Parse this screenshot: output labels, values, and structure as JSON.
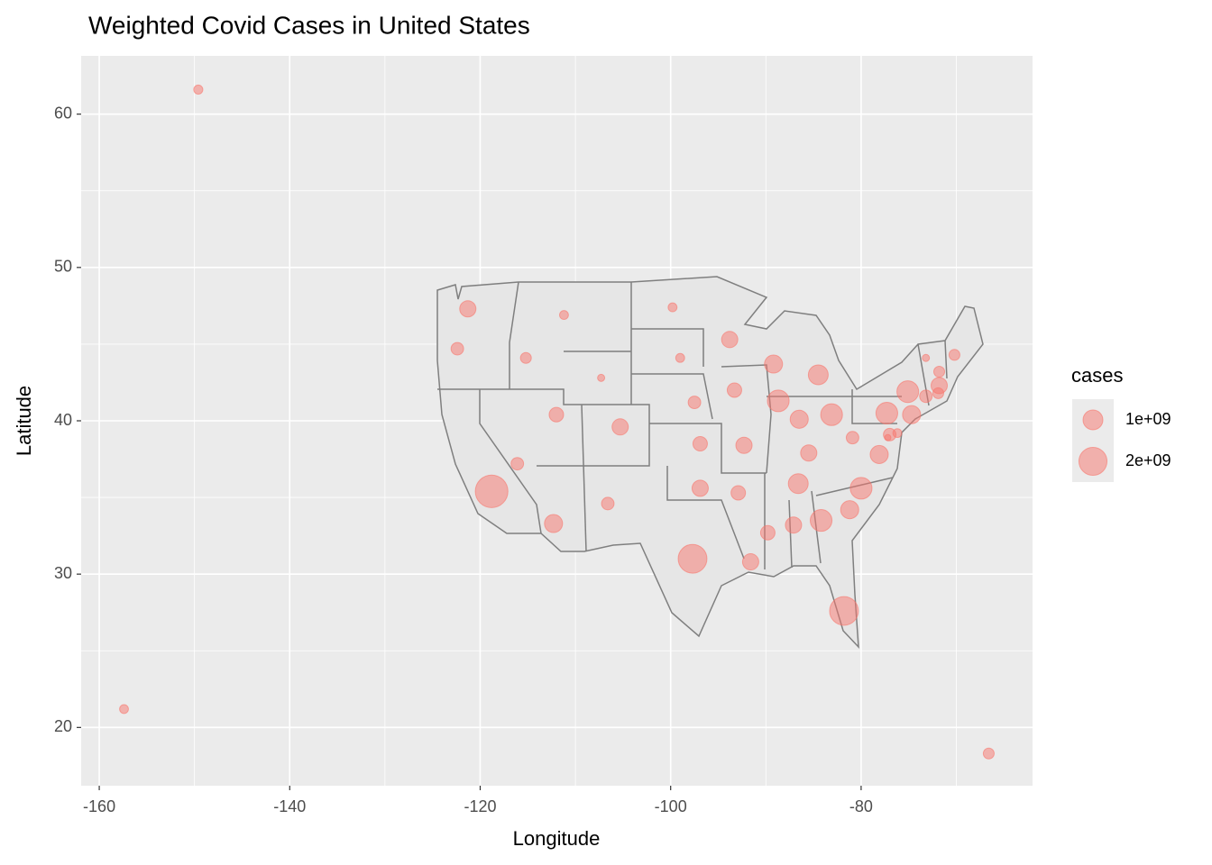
{
  "chart_data": {
    "type": "scatter",
    "title": "Weighted Covid Cases in United States",
    "x_label": "Longitude",
    "y_label": "Latitude",
    "xlim": [
      -161.9,
      -62.0
    ],
    "ylim": [
      16.2,
      63.8
    ],
    "xticks": [
      -160,
      -140,
      -120,
      -100,
      -80
    ],
    "yticks": [
      20,
      30,
      40,
      50,
      60
    ],
    "x_minor_ticks": [
      -150,
      -130,
      -110,
      -90,
      -70
    ],
    "y_minor_ticks": [
      25,
      35,
      45,
      55
    ],
    "grid": true,
    "color": "#f8766d",
    "x": [
      -149.6,
      -157.4,
      -66.6,
      -121.3,
      -122.4,
      -118.8,
      -116.1,
      -115.2,
      -111.2,
      -107.3,
      -112.0,
      -112.3,
      -105.3,
      -106.6,
      -99.8,
      -99.0,
      -97.5,
      -96.9,
      -96.9,
      -97.7,
      -93.8,
      -93.3,
      -92.3,
      -92.9,
      -91.6,
      -89.2,
      -88.7,
      -89.8,
      -84.5,
      -86.5,
      -85.5,
      -86.6,
      -87.1,
      -84.2,
      -81.8,
      -83.1,
      -80.9,
      -78.1,
      -80.0,
      -81.2,
      -77.3,
      -75.1,
      -74.7,
      -77.0,
      -76.2,
      -77.2,
      -73.2,
      -71.9,
      -71.8,
      -71.8,
      -73.2,
      -70.2
    ],
    "values": [
      61.6,
      21.2,
      18.3,
      47.3,
      44.7,
      35.4,
      37.2,
      44.1,
      46.9,
      42.8,
      40.4,
      33.3,
      39.6,
      34.6,
      47.4,
      44.1,
      41.2,
      38.5,
      35.6,
      31.0,
      45.3,
      42.0,
      38.4,
      35.3,
      30.8,
      43.7,
      41.3,
      32.7,
      43.0,
      40.1,
      37.9,
      35.9,
      33.2,
      33.5,
      27.6,
      40.4,
      38.9,
      37.8,
      35.6,
      34.2,
      40.5,
      41.9,
      40.4,
      39.1,
      39.2,
      38.9,
      41.6,
      41.8,
      42.3,
      43.2,
      44.1,
      44.3
    ],
    "sizes": [
      210000000,
      200000000,
      300000000,
      670000000,
      400000000,
      2700000000,
      400000000,
      300000000,
      200000000,
      130000000,
      530000000,
      830000000,
      670000000,
      400000000,
      200000000,
      200000000,
      400000000,
      530000000,
      670000000,
      2100000000,
      670000000,
      530000000,
      670000000,
      530000000,
      670000000,
      830000000,
      1200000000,
      530000000,
      1000000000,
      830000000,
      670000000,
      1000000000,
      670000000,
      1200000000,
      2100000000,
      1200000000,
      400000000,
      830000000,
      1200000000,
      830000000,
      1200000000,
      1200000000,
      830000000,
      400000000,
      200000000,
      100000000,
      400000000,
      300000000,
      670000000,
      300000000,
      130000000,
      300000000
    ],
    "size_legend": {
      "title": "cases",
      "entries": [
        {
          "value": 1000000000,
          "label": "1e+09"
        },
        {
          "value": 2000000000,
          "label": "2e+09"
        }
      ]
    }
  }
}
